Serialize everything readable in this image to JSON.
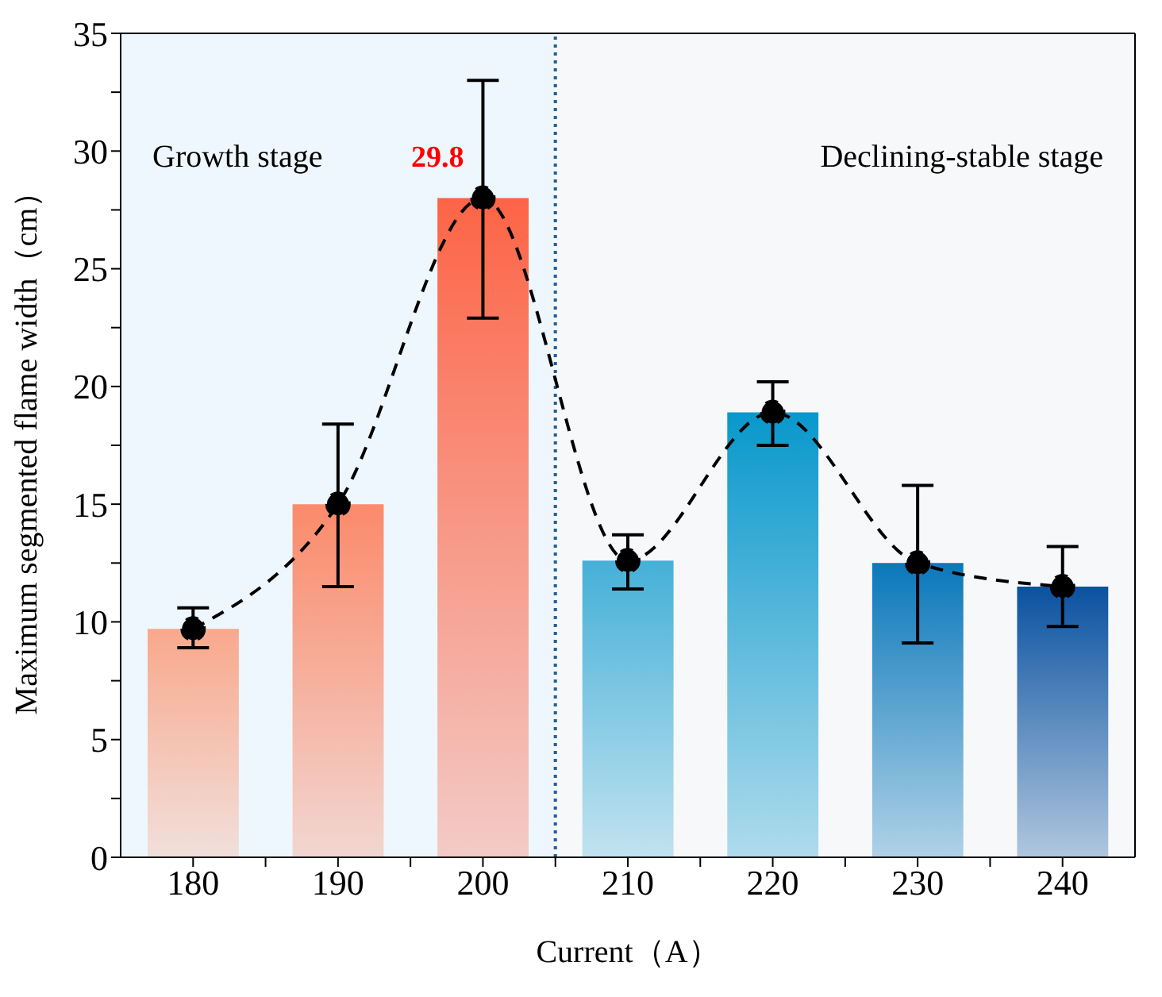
{
  "chart_data": {
    "type": "bar",
    "xlabel": "Current（A）",
    "ylabel": "Maximum segmented flame width（cm）",
    "x": [
      180,
      190,
      200,
      210,
      220,
      230,
      240
    ],
    "xlim": [
      175,
      245
    ],
    "xticks": [
      180,
      {
        "value": 185,
        "label": null
      },
      190,
      {
        "value": 195,
        "label": null
      },
      200,
      {
        "value": 205,
        "label": null
      },
      210,
      {
        "value": 215,
        "label": null
      },
      220,
      {
        "value": 225,
        "label": null
      },
      230,
      {
        "value": 235,
        "label": null
      },
      240
    ],
    "ylim": [
      0,
      35
    ],
    "yticks": [
      0,
      {
        "value": 2.5,
        "label": null
      },
      5,
      {
        "value": 7.5,
        "label": null
      },
      10,
      {
        "value": 12.5,
        "label": null
      },
      15,
      {
        "value": 17.5,
        "label": null
      },
      20,
      {
        "value": 22.5,
        "label": null
      },
      25,
      {
        "value": 27.5,
        "label": null
      },
      30,
      {
        "value": 32.5,
        "label": null
      },
      35
    ],
    "series": [
      {
        "colors": [
          "#f9a88c",
          "#fb8a6a",
          "#fd6446",
          "#45b0d8",
          "#0898cc",
          "#0a78bb",
          "#0a52a0"
        ],
        "values": [
          9.7,
          15,
          28,
          12.6,
          18.9,
          12.5,
          11.5
        ]
      },
      {
        "type": "line",
        "color": "#000000",
        "marker": "circle",
        "line_style": "dashed",
        "values": [
          9.7,
          15,
          28,
          12.6,
          18.9,
          12.5,
          11.5
        ],
        "errors": [
          [
            8.9,
            10.6
          ],
          [
            11.5,
            18.4
          ],
          [
            22.9,
            33
          ],
          [
            11.4,
            13.7
          ],
          [
            17.5,
            20.2
          ],
          [
            9.1,
            15.8
          ],
          [
            9.8,
            13.2
          ]
        ]
      }
    ],
    "bands": [
      {
        "axis": "x",
        "from": 175,
        "to": 205,
        "label": "Growth stage",
        "color": "#eef7fd"
      },
      {
        "axis": "x",
        "from": 205,
        "to": 245,
        "label": "Declining-stable stage",
        "color": "#f7f8fa"
      }
    ],
    "ref_lines": [
      {
        "axis": "x",
        "value": 205,
        "color": "#1f5f99",
        "line_style": "dotted"
      }
    ],
    "annotations": [
      {
        "text": "29.8",
        "x": 200,
        "y": 29.8
      }
    ],
    "grid": false,
    "legend": false
  }
}
